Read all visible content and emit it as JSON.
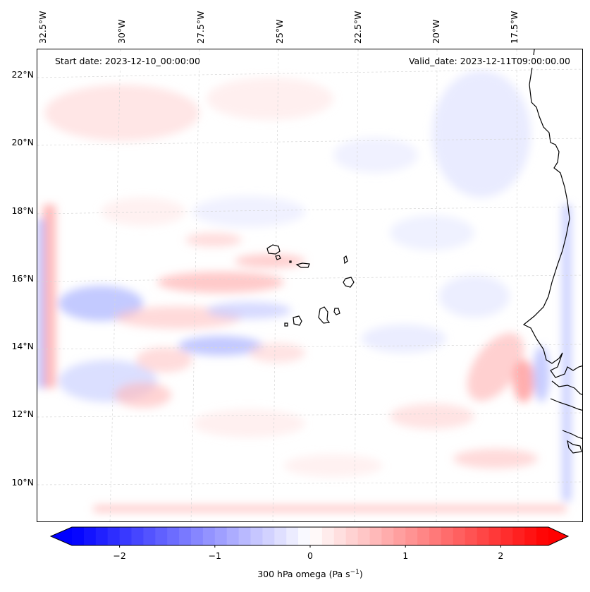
{
  "header": {
    "start_date": "Start date: 2023-12-10_00:00:00",
    "valid_date": "Valid_date: 2023-12-11T09:00:00.00"
  },
  "axes": {
    "lon_labels": [
      "32.5°W",
      "30°W",
      "27.5°W",
      "25°W",
      "22.5°W",
      "20°W",
      "17.5°W"
    ],
    "lat_labels": [
      "22°N",
      "20°N",
      "18°N",
      "16°N",
      "14°N",
      "12°N",
      "10°N"
    ]
  },
  "colorbar": {
    "ticks": [
      "−2",
      "−1",
      "0",
      "1",
      "2"
    ],
    "tick_values": [
      -2,
      -1,
      0,
      1,
      2
    ],
    "min": -2.5,
    "max": 2.5,
    "label_prefix": "300 hPa omega (Pa s",
    "label_exp": "−1",
    "label_suffix": ")",
    "low_color": "#0000ff",
    "mid_color": "#ffffff",
    "high_color": "#ff0000"
  },
  "map": {
    "field": "300 hPa omega",
    "coastline_color": "#000000",
    "gridline_color": "#cccccc"
  }
}
